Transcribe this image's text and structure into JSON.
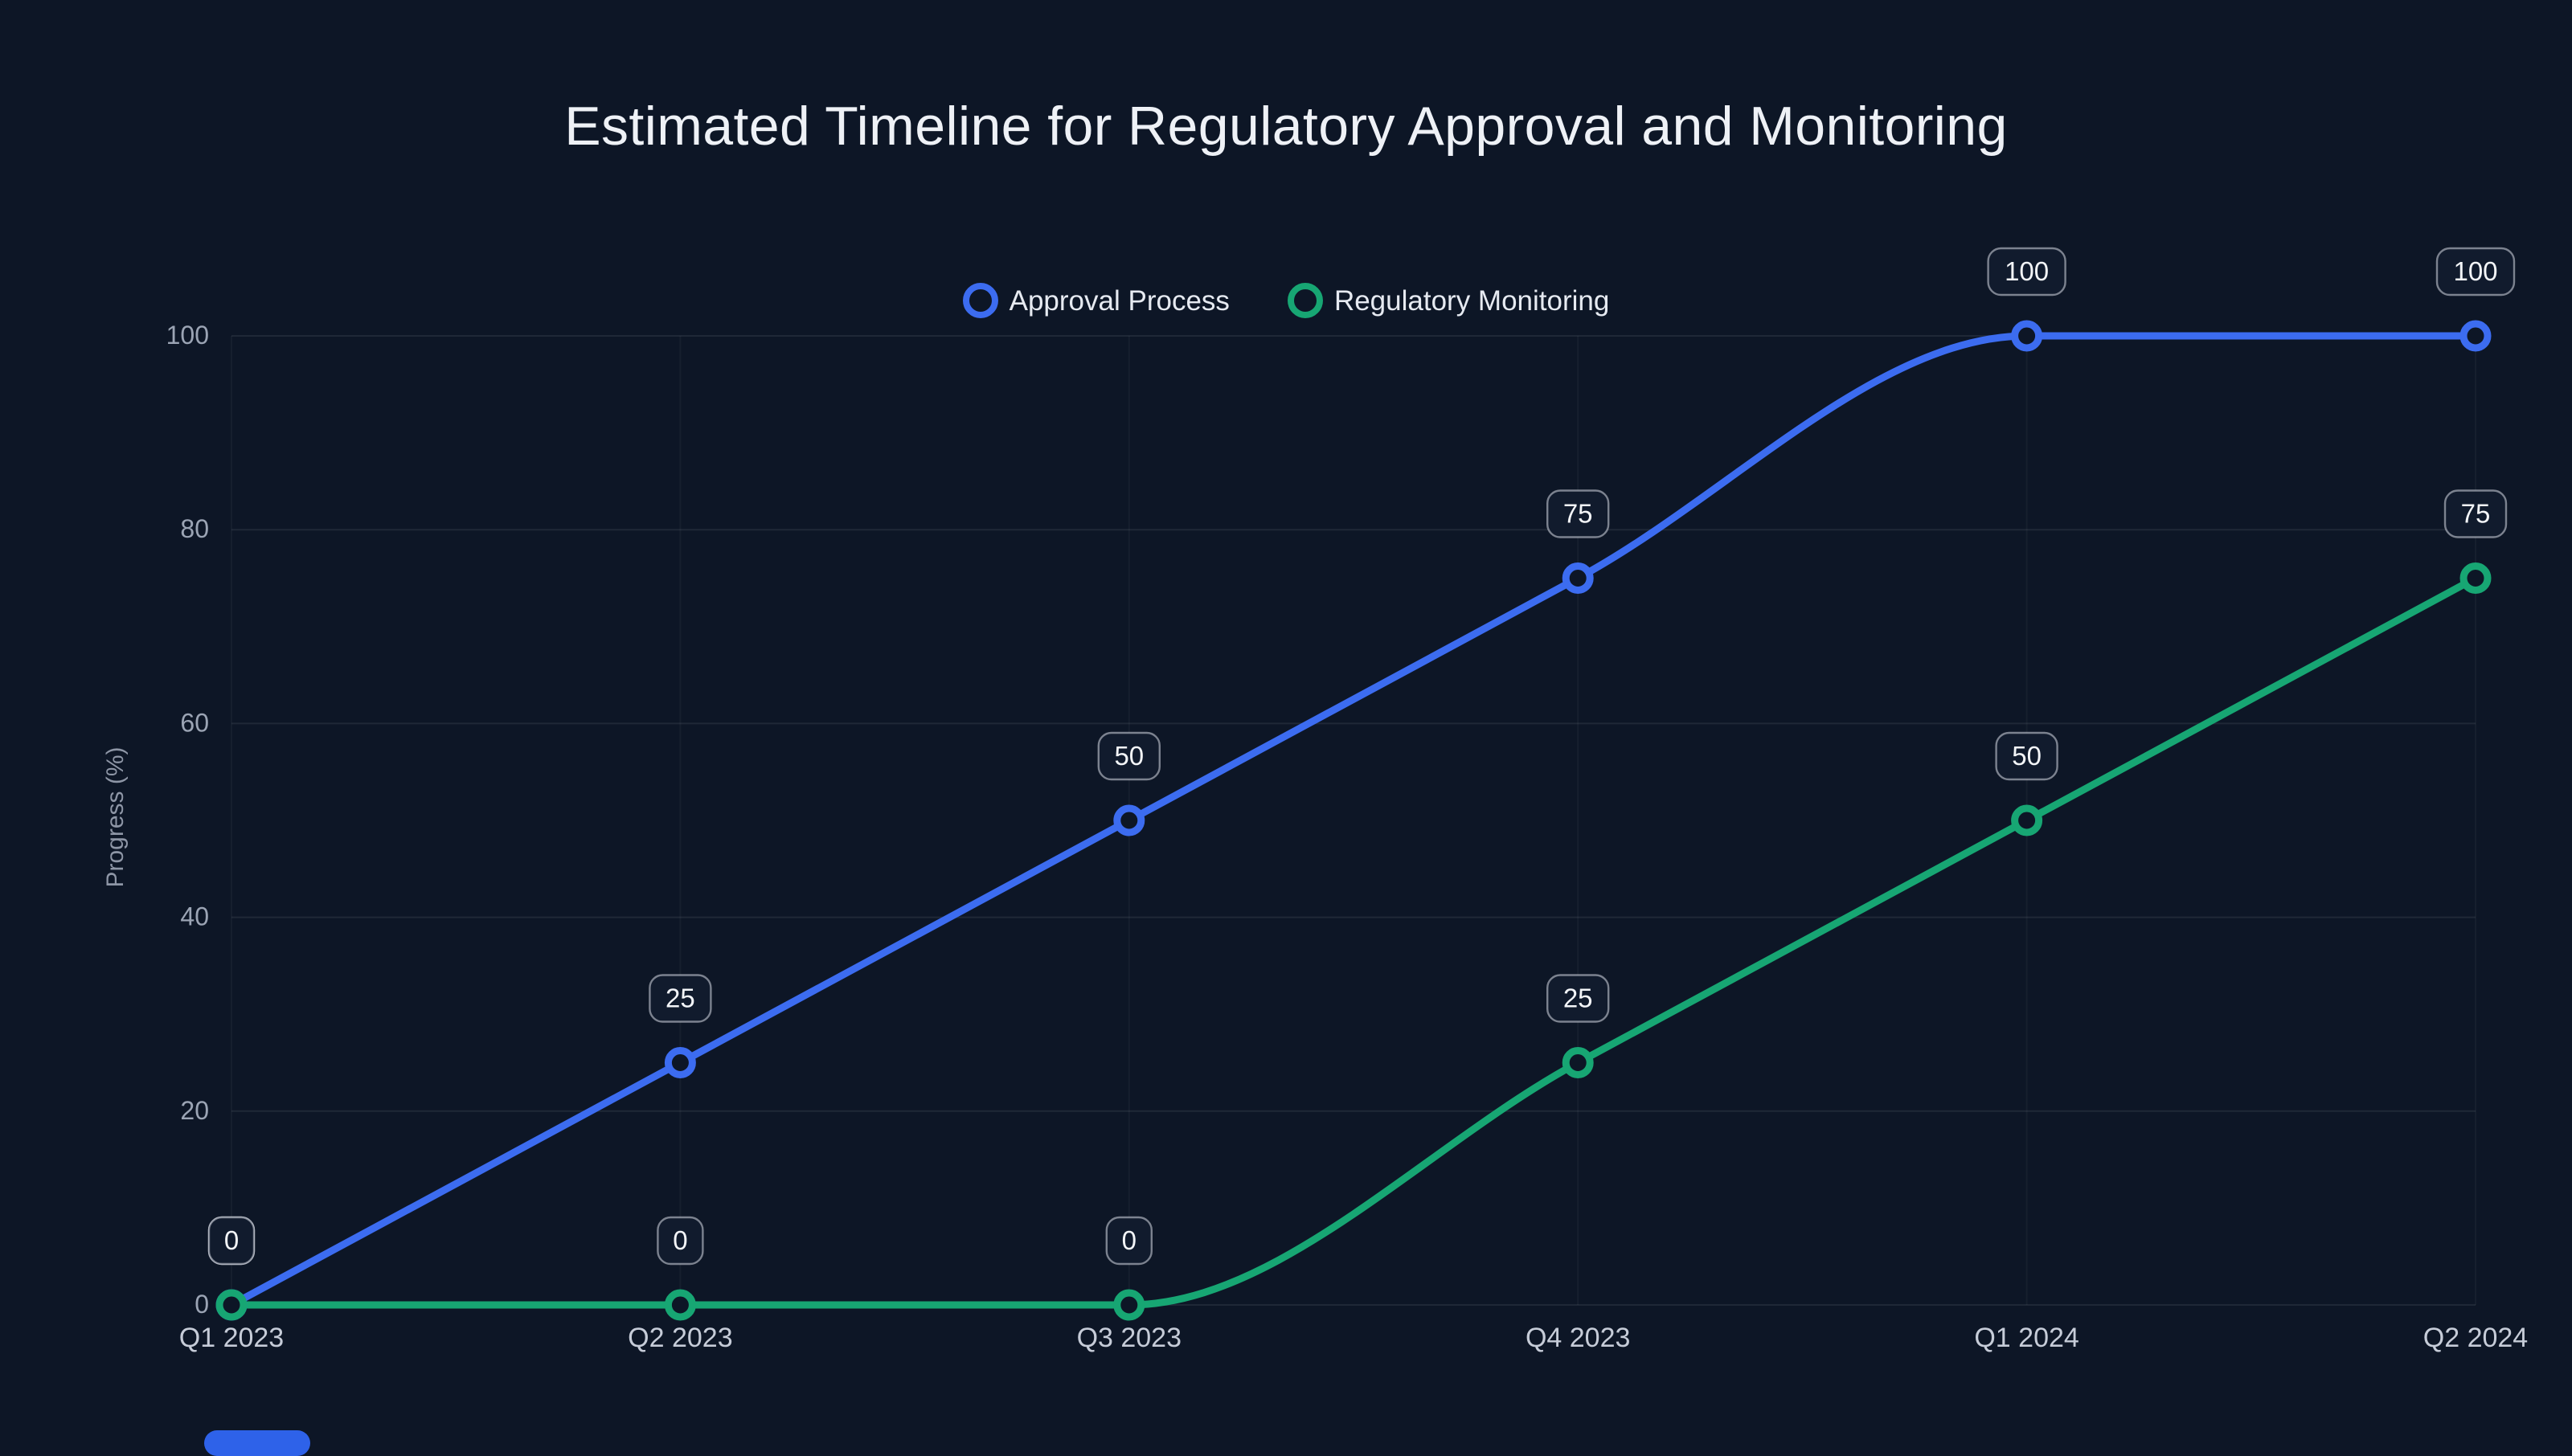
{
  "title": "Estimated Timeline for Regulatory Approval and Monitoring",
  "chart_data": {
    "type": "line",
    "x": [
      "Q1 2023",
      "Q2 2023",
      "Q3 2023",
      "Q4 2023",
      "Q1 2024",
      "Q2 2024"
    ],
    "series": [
      {
        "name": "Approval Process",
        "color": "#3c6cf0",
        "values": [
          0,
          25,
          50,
          75,
          100,
          100
        ]
      },
      {
        "name": "Regulatory Monitoring",
        "color": "#17a673",
        "values": [
          0,
          0,
          0,
          25,
          50,
          75
        ]
      }
    ],
    "title": "Estimated Timeline for Regulatory Approval and Monitoring",
    "xlabel": "",
    "ylabel": "Progress (%)",
    "yticks": [
      0,
      20,
      40,
      60,
      80,
      100
    ],
    "ylim": [
      0,
      100
    ],
    "grid": true,
    "legend_position": "top",
    "point_labels": true,
    "curve": "monotone"
  },
  "colors": {
    "background": "#0d1626",
    "grid_h": "rgba(255,255,255,0.08)",
    "grid_v": "rgba(255,255,255,0.04)",
    "y_tick_text": "#9ba4b4",
    "x_tick_text": "#c6ccd8",
    "badge_bg": "#111b2d",
    "badge_border": "#d7dbe4",
    "badge_text": "#f3f5f8",
    "title_text": "#eef1f6",
    "accent_bar": "#2e62e9"
  }
}
